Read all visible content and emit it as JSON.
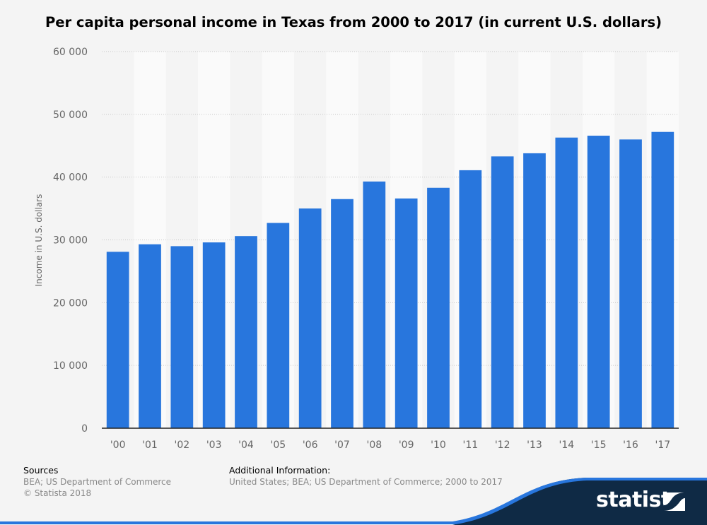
{
  "chart_data": {
    "type": "bar",
    "title": "Per capita personal income in Texas from 2000 to 2017 (in current U.S. dollars)",
    "xlabel": "",
    "ylabel": "Income in U.S. dollars",
    "categories": [
      "'00",
      "'01",
      "'02",
      "'03",
      "'04",
      "'05",
      "'06",
      "'07",
      "'08",
      "'09",
      "'10",
      "'11",
      "'12",
      "'13",
      "'14",
      "'15",
      "'16",
      "'17"
    ],
    "values": [
      28100,
      29300,
      29000,
      29600,
      30600,
      32700,
      35000,
      36500,
      39300,
      36600,
      38300,
      41100,
      43300,
      43800,
      46300,
      46600,
      46000,
      47200
    ],
    "ylim": [
      0,
      60000
    ],
    "yticks": [
      0,
      10000,
      20000,
      30000,
      40000,
      50000,
      60000
    ],
    "ytick_labels": [
      "0",
      "10 000",
      "20 000",
      "30 000",
      "40 000",
      "50 000",
      "60 000"
    ],
    "grid": true,
    "bar_color": "#2876dd"
  },
  "footer": {
    "sources_head": "Sources",
    "sources_line1": "BEA; US Department of Commerce",
    "sources_line2": "© Statista 2018",
    "info_head": "Additional Information:",
    "info_line1": "United States; BEA; US Department of Commerce; 2000 to 2017"
  },
  "brand": {
    "name": "statista",
    "icon": "statista-logo-icon",
    "color": "#0f2a45"
  }
}
